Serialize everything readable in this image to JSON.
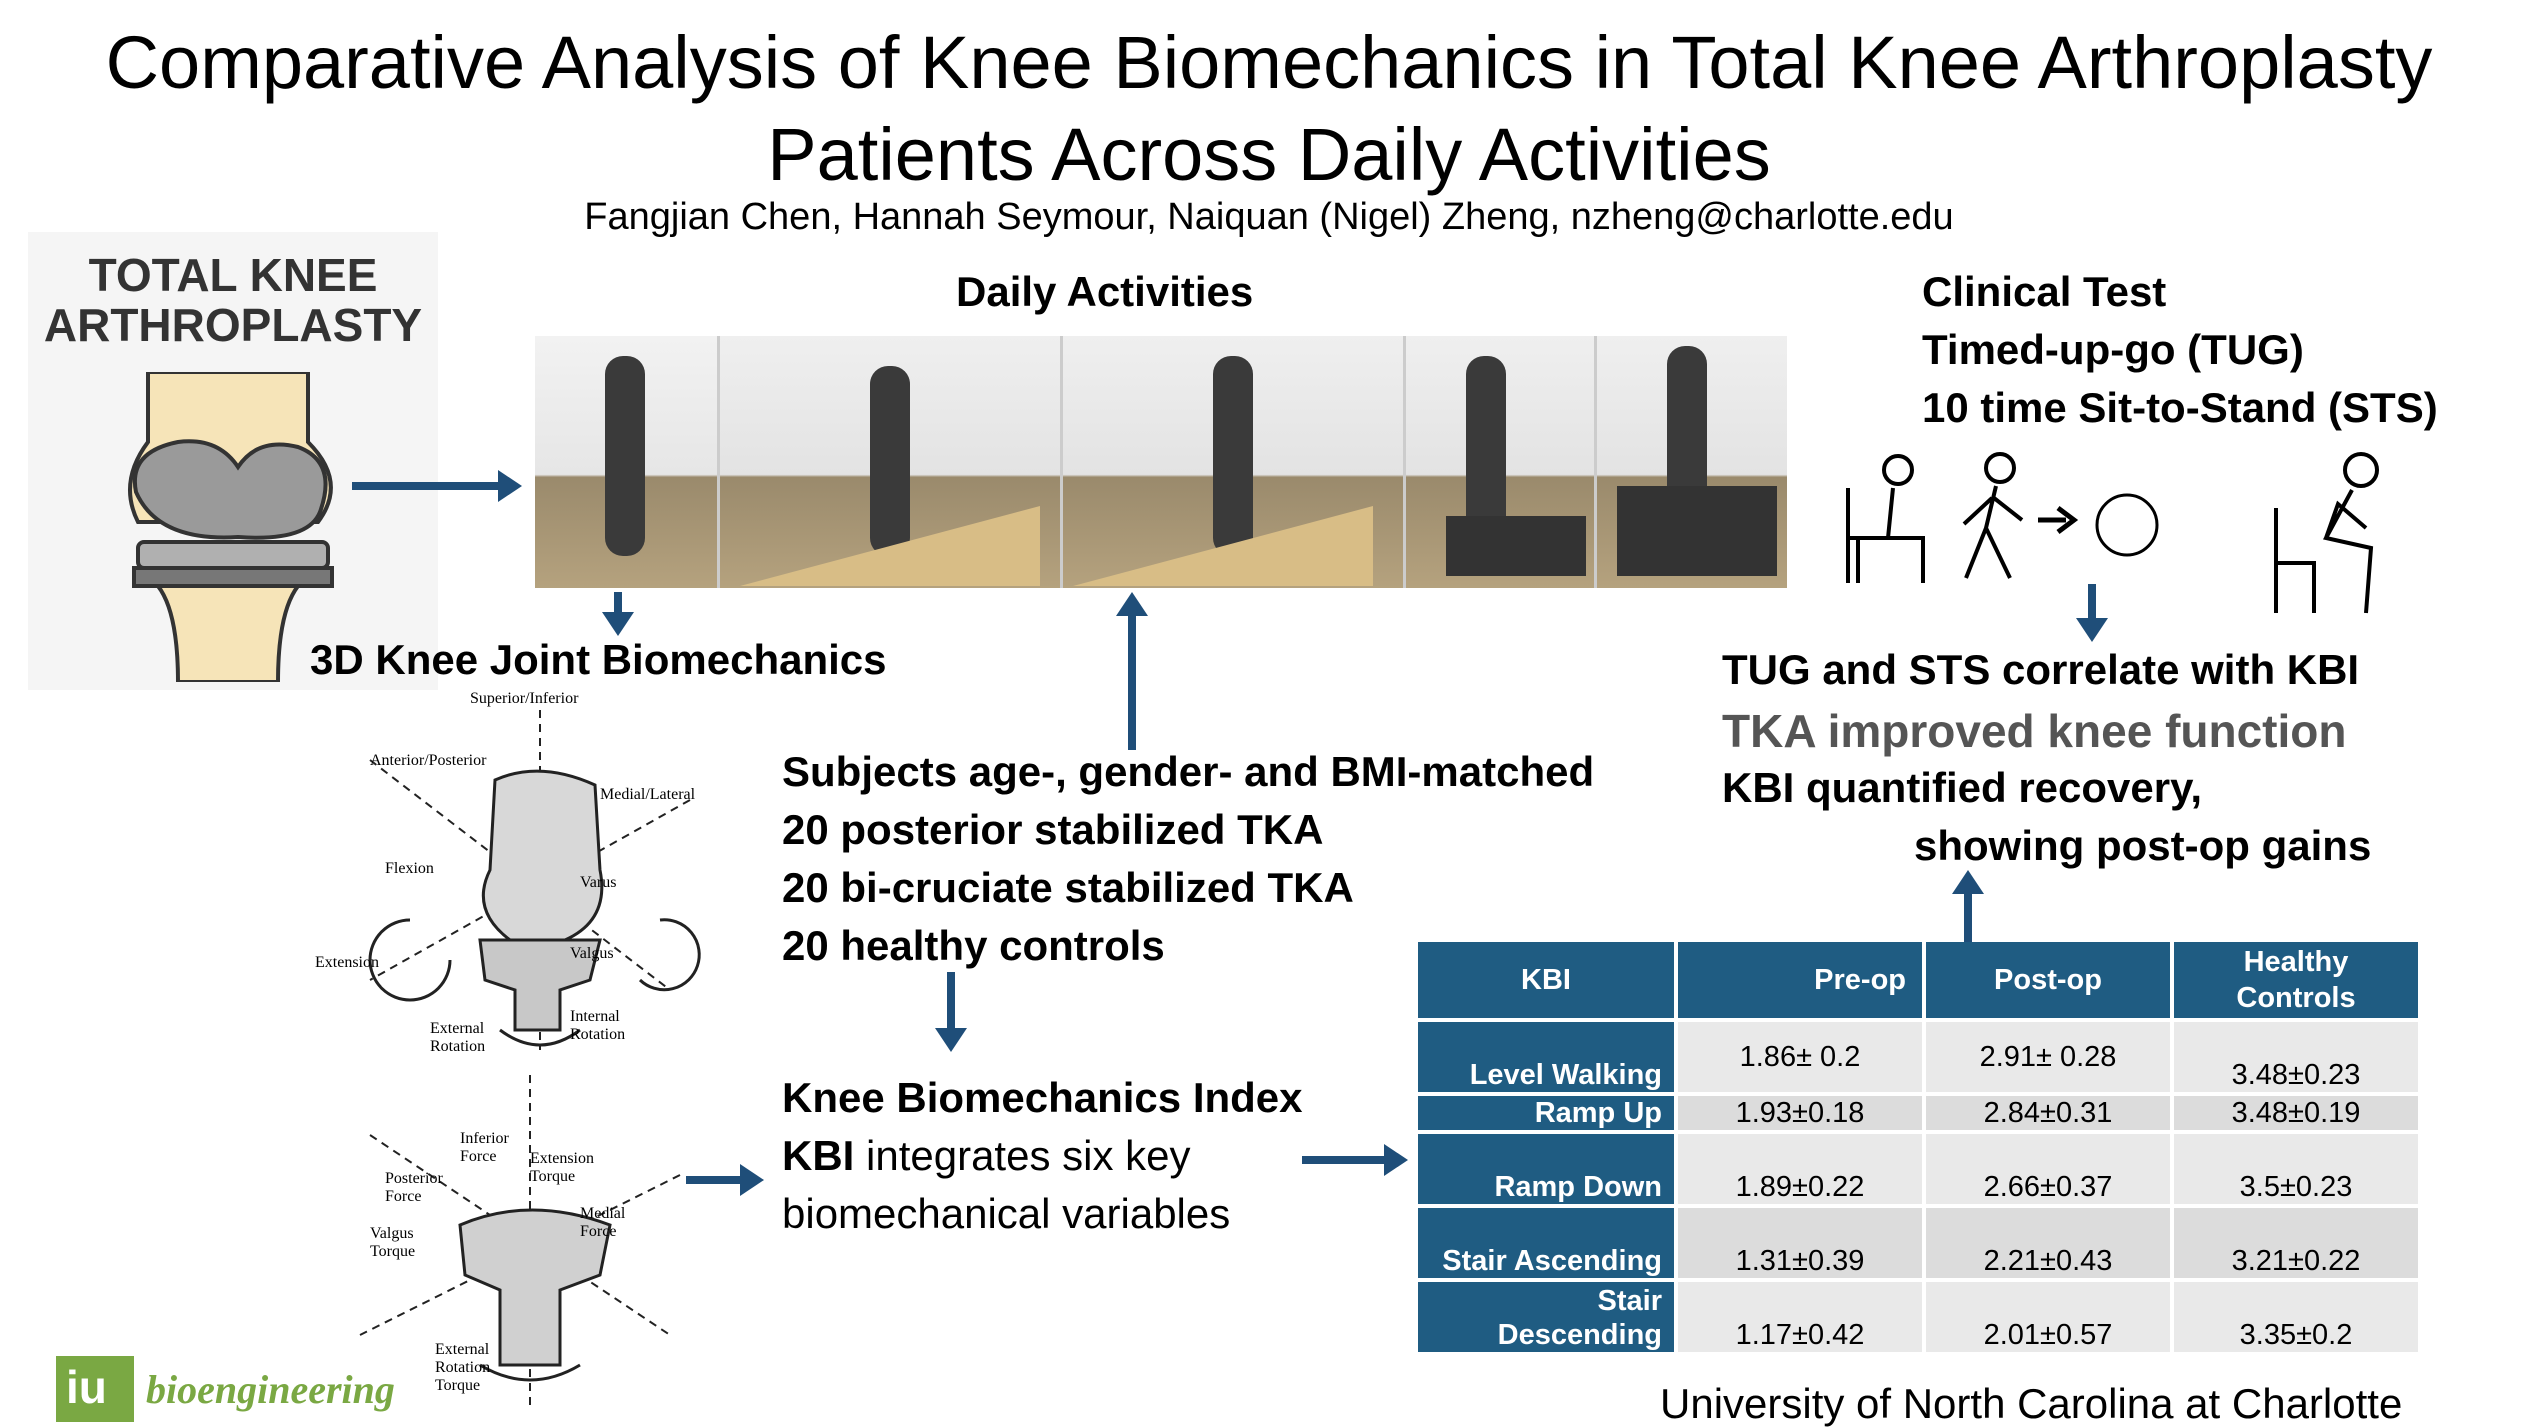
{
  "title_line1": "Comparative Analysis of Knee Biomechanics in Total Knee Arthroplasty",
  "title_line2": "Patients Across Daily Activities",
  "authors": "Fangjian Chen, Hannah Seymour, Naiquan (Nigel) Zheng, nzheng@charlotte.edu",
  "tka_logo_line1": "TOTAL KNEE",
  "tka_logo_line2": "ARTHROPLASTY",
  "daily_activities_heading": "Daily Activities",
  "clinical": {
    "line1": "Clinical Test",
    "line2": "Timed-up-go (TUG)",
    "line3": "10 time Sit-to-Stand (STS)"
  },
  "biomech_heading": "3D Knee Joint Biomechanics",
  "diagram1_labels": {
    "superior": "Superior/Inferior",
    "anterior": "Anterior/Posterior",
    "medial": "Medial/Lateral",
    "flexion": "Flexion",
    "extension": "Extension",
    "varus": "Varus",
    "valgus": "Valgus",
    "external": "External Rotation",
    "internal": "Internal Rotation"
  },
  "diagram2_labels": {
    "inferior_force": "Inferior Force",
    "extension_torque": "Extension Torque",
    "posterior_force": "Posterior Force",
    "medial_force": "Medial Force",
    "valgus_torque": "Valgus Torque",
    "ext_rot_torque": "External Rotation Torque"
  },
  "subjects": [
    "Subjects age-, gender- and BMI-matched",
    "20 posterior stabilized TKA",
    "20 bi-cruciate stabilized TKA",
    "20 healthy controls"
  ],
  "kbi": {
    "heading": "Knee Biomechanics Index",
    "line2_bold": "KBI",
    "line2_rest": " integrates six key",
    "line3": "biomechanical variables"
  },
  "findings": {
    "line1": "TUG and STS correlate with KBI",
    "line2": "TKA improved knee function",
    "line3": "KBI quantified recovery,",
    "line4": "showing post-op gains"
  },
  "table": {
    "headers": [
      "KBI",
      "Pre-op",
      "Post-op",
      "Healthy Controls"
    ],
    "rows": [
      {
        "label": "Level Walking",
        "pre": "1.86± 0.2",
        "post": "2.91± 0.28",
        "healthy": "3.48±0.23"
      },
      {
        "label": "Ramp Up",
        "pre": "1.93±0.18",
        "post": "2.84±0.31",
        "healthy": "3.48±0.19"
      },
      {
        "label": "Ramp Down",
        "pre": "1.89±0.22",
        "post": "2.66±0.37",
        "healthy": "3.5±0.23"
      },
      {
        "label": "Stair Ascending",
        "pre": "1.31±0.39",
        "post": "2.21±0.43",
        "healthy": "3.21±0.22"
      },
      {
        "label": "Stair Descending",
        "pre": "1.17±0.42",
        "post": "2.01±0.57",
        "healthy": "3.35±0.2"
      }
    ]
  },
  "university": "University of North Carolina at Charlotte",
  "logo_text": "bioengineering",
  "colors": {
    "accent": "#1f5c82",
    "arrow": "#1f4e79",
    "logo_green": "#7aa843"
  }
}
